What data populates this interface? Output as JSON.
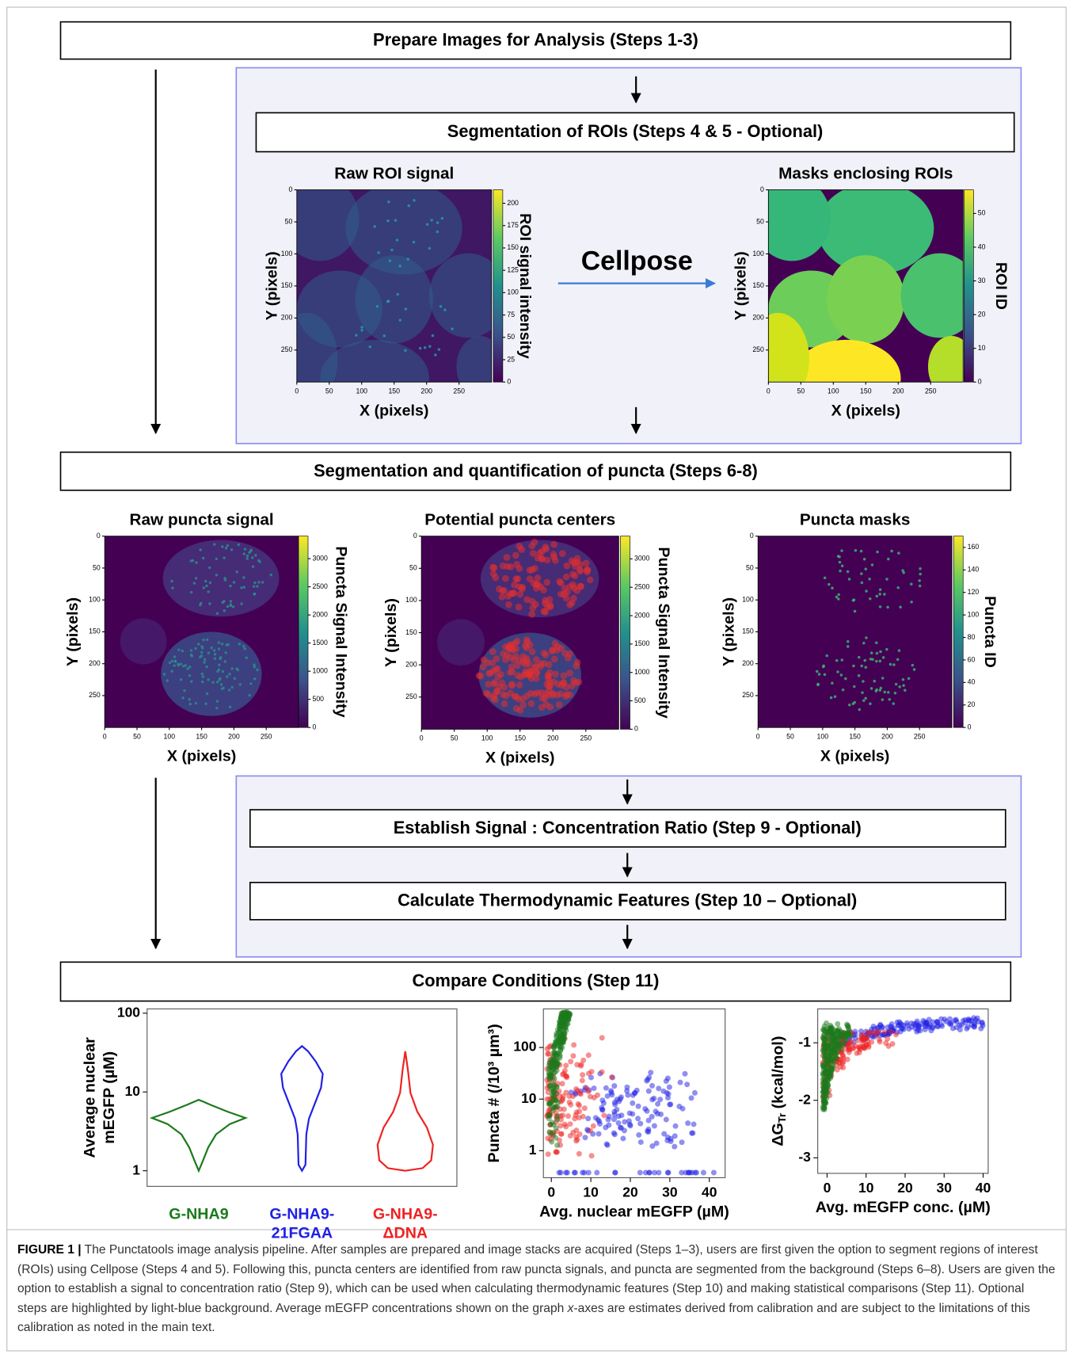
{
  "header": {
    "title": "Prepare Images for Analysis (Steps 1-3)"
  },
  "roi": {
    "title": "Segmentation of ROIs (Steps 4 & 5 - Optional)",
    "arrow_label": "Cellpose",
    "panels": [
      {
        "title": "Raw ROI signal",
        "xlabel": "X (pixels)",
        "ylabel": "Y (pixels)",
        "colorbar_label": "ROI signal intensity",
        "xlim": [
          0,
          300
        ],
        "ylim": [
          0,
          300
        ],
        "xticks": [
          0,
          50,
          100,
          150,
          200,
          250
        ],
        "yticks": [
          0,
          50,
          100,
          150,
          200,
          250
        ],
        "colorbar_lim": [
          0,
          215
        ],
        "colorbar_ticks": [
          0,
          25,
          50,
          75,
          100,
          125,
          150,
          175,
          200
        ]
      },
      {
        "title": "Masks enclosing ROIs",
        "xlabel": "X (pixels)",
        "ylabel": "Y (pixels)",
        "colorbar_label": "ROI ID",
        "xlim": [
          0,
          300
        ],
        "ylim": [
          0,
          300
        ],
        "xticks": [
          0,
          50,
          100,
          150,
          200,
          250
        ],
        "yticks": [
          0,
          50,
          100,
          150,
          200,
          250
        ],
        "colorbar_lim": [
          0,
          57
        ],
        "colorbar_ticks": [
          0,
          10,
          20,
          30,
          40,
          50
        ]
      }
    ]
  },
  "puncta": {
    "title": "Segmentation and quantification of puncta (Steps 6-8)",
    "panels": [
      {
        "title": "Raw puncta signal",
        "xlabel": "X (pixels)",
        "ylabel": "Y (pixels)",
        "colorbar_label": "Puncta Signal Intensity",
        "xlim": [
          0,
          300
        ],
        "ylim": [
          0,
          300
        ],
        "xticks": [
          0,
          50,
          100,
          150,
          200,
          250
        ],
        "yticks": [
          0,
          50,
          100,
          150,
          200,
          250
        ],
        "colorbar_lim": [
          0,
          3400
        ],
        "colorbar_ticks": [
          0,
          500,
          1000,
          1500,
          2000,
          2500,
          3000
        ]
      },
      {
        "title": "Potential puncta centers",
        "xlabel": "X (pixels)",
        "ylabel": "Y (pixels)",
        "colorbar_label": "Puncta Signal Intensity",
        "xlim": [
          0,
          300
        ],
        "ylim": [
          0,
          300
        ],
        "xticks": [
          0,
          50,
          100,
          150,
          200,
          250
        ],
        "yticks": [
          0,
          50,
          100,
          150,
          200,
          250
        ],
        "colorbar_lim": [
          0,
          3400
        ],
        "colorbar_ticks": [
          0,
          500,
          1000,
          1500,
          2000,
          2500,
          3000
        ]
      },
      {
        "title": "Puncta masks",
        "xlabel": "X (pixels)",
        "ylabel": "Y (pixels)",
        "colorbar_label": "Puncta ID",
        "xlim": [
          0,
          300
        ],
        "ylim": [
          0,
          300
        ],
        "xticks": [
          0,
          50,
          100,
          150,
          200,
          250
        ],
        "yticks": [
          0,
          50,
          100,
          150,
          200,
          250
        ],
        "colorbar_lim": [
          0,
          170
        ],
        "colorbar_ticks": [
          0,
          20,
          40,
          60,
          80,
          100,
          120,
          140,
          160
        ]
      }
    ]
  },
  "thermo": {
    "steps": [
      "Establish Signal : Concentration Ratio  (Step 9 - Optional)",
      "Calculate Thermodynamic Features (Step 10 – Optional)"
    ]
  },
  "compare": {
    "title": "Compare Conditions (Step 11)",
    "plots": [
      {
        "ylabel": [
          "Average nuclear",
          "mEGFP (µM)"
        ],
        "yscale": "log",
        "ylim": [
          0.634,
          113.5
        ],
        "yticks": [
          1,
          10,
          100
        ],
        "groups": [
          {
            "name": [
              "G-NHA9"
            ],
            "color": "#1b7a1b"
          },
          {
            "name": [
              "G-NHA9-",
              "21FGAA"
            ],
            "color": "#2020e6"
          },
          {
            "name": [
              "G-NHA9-",
              "ΔDNA"
            ],
            "color": "#ee2222"
          }
        ]
      },
      {
        "xlabel": "Avg. nuclear mEGFP (µM)",
        "ylabel": "Puncta # (/10³ µm³)",
        "yscale": "log",
        "xlim": [
          -2,
          44
        ],
        "ylim": [
          0.3,
          560
        ],
        "xticks": [
          0,
          10,
          20,
          30,
          40
        ],
        "yticks": [
          1,
          10,
          100
        ]
      },
      {
        "xlabel": "Avg. mEGFP conc. (µM)",
        "ylabel": {
          "symbol": "ΔG",
          "subscript": "Tr",
          "unit": " (kcal/mol)"
        },
        "yscale": "linear",
        "xlim": [
          -2.4,
          41.3
        ],
        "ylim": [
          -3.27,
          -0.41
        ],
        "xticks": [
          0,
          10,
          20,
          30,
          40
        ],
        "yticks": [
          -1,
          -2,
          -3
        ]
      }
    ]
  },
  "caption": {
    "label": "FIGURE 1 |",
    "text_before": " The Punctatools image analysis pipeline. After samples are prepared and image stacks are acquired (Steps 1–3), users are first given the option to segment regions of interest (ROIs) using Cellpose (Steps 4 and 5). Following this, puncta centers are identified from raw puncta signals, and puncta are segmented from the background (Steps 6–8). Users are given the option to establish a signal to concentration ratio (Step 9), which can be used when calculating thermodynamic features (Step 10) and making statistical comparisons (Step 11). Optional steps are highlighted by light-blue background. Average mEGFP concentrations shown on the graph ",
    "text_italic": "x",
    "text_after": "-axes are estimates derived from calibration and are subject to the limitations of this calibration as noted in the main text."
  }
}
